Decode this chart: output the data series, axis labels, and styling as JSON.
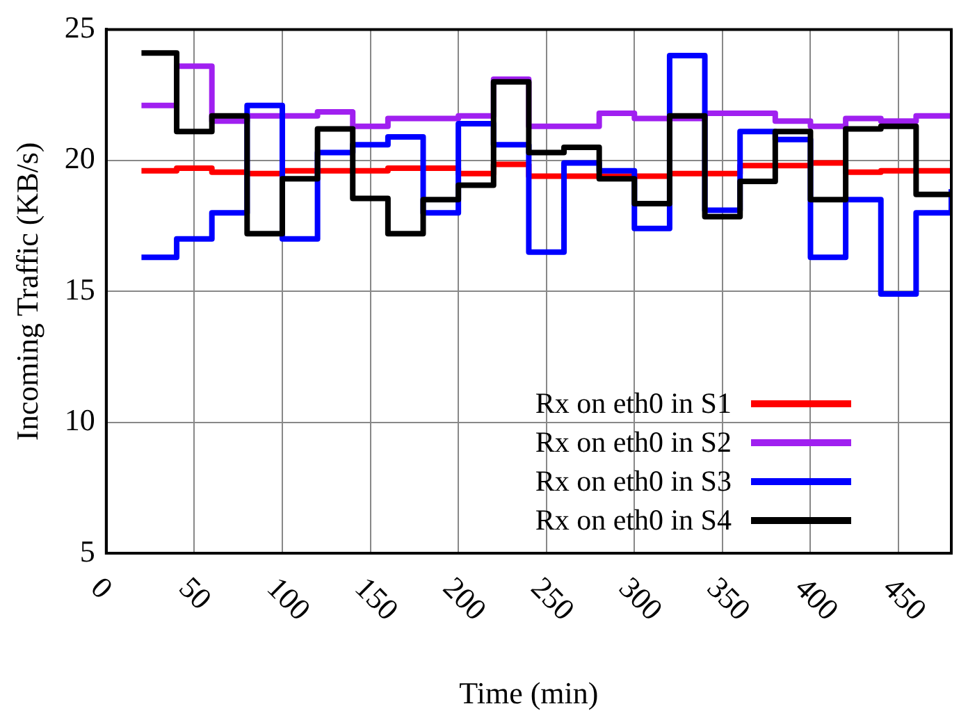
{
  "chart_data": {
    "type": "step",
    "xlabel": "Time (min)",
    "ylabel": "Incoming Traffic (KB/s)",
    "x": [
      20,
      40,
      60,
      80,
      100,
      120,
      140,
      160,
      180,
      200,
      220,
      240,
      260,
      280,
      300,
      320,
      340,
      360,
      380,
      400,
      420,
      440,
      460,
      480
    ],
    "series": [
      {
        "name": "Rx on eth0 in S1",
        "color": "#ff0000",
        "values": [
          19.6,
          19.7,
          19.55,
          19.5,
          19.6,
          19.6,
          19.6,
          19.7,
          19.7,
          19.5,
          19.85,
          19.4,
          19.4,
          19.4,
          19.4,
          19.5,
          19.5,
          19.8,
          19.8,
          19.9,
          19.55,
          19.6,
          19.6,
          19.6
        ]
      },
      {
        "name": "Rx on eth0 in S2",
        "color": "#a020f0",
        "values": [
          22.1,
          23.6,
          21.5,
          21.7,
          21.7,
          21.85,
          21.3,
          21.6,
          21.6,
          21.7,
          23.1,
          21.3,
          21.3,
          21.8,
          21.6,
          21.6,
          21.8,
          21.8,
          21.5,
          21.3,
          21.6,
          21.5,
          21.7,
          21.7
        ]
      },
      {
        "name": "Rx on eth0 in S3",
        "color": "#0000ff",
        "values": [
          16.3,
          17.0,
          18.0,
          22.1,
          17.0,
          20.3,
          20.6,
          20.9,
          18.0,
          21.4,
          20.6,
          16.5,
          19.9,
          19.6,
          17.4,
          24.0,
          18.1,
          21.1,
          20.8,
          16.3,
          18.5,
          14.9,
          18.0,
          18.9
        ]
      },
      {
        "name": "Rx on eth0 in S4",
        "color": "#000000",
        "values": [
          24.1,
          21.1,
          21.7,
          17.2,
          19.3,
          21.2,
          18.55,
          17.2,
          18.5,
          19.05,
          23.0,
          20.3,
          20.5,
          19.3,
          18.35,
          21.7,
          17.85,
          19.2,
          21.1,
          18.5,
          21.2,
          21.3,
          18.7,
          18.7
        ]
      }
    ],
    "xlim": [
      0,
      480
    ],
    "xticks": [
      0,
      50,
      100,
      150,
      200,
      250,
      300,
      350,
      400,
      450
    ],
    "ylim": [
      5,
      25
    ],
    "yticks": [
      5,
      10,
      15,
      20,
      25
    ],
    "grid": true,
    "legend": "bottom right"
  }
}
